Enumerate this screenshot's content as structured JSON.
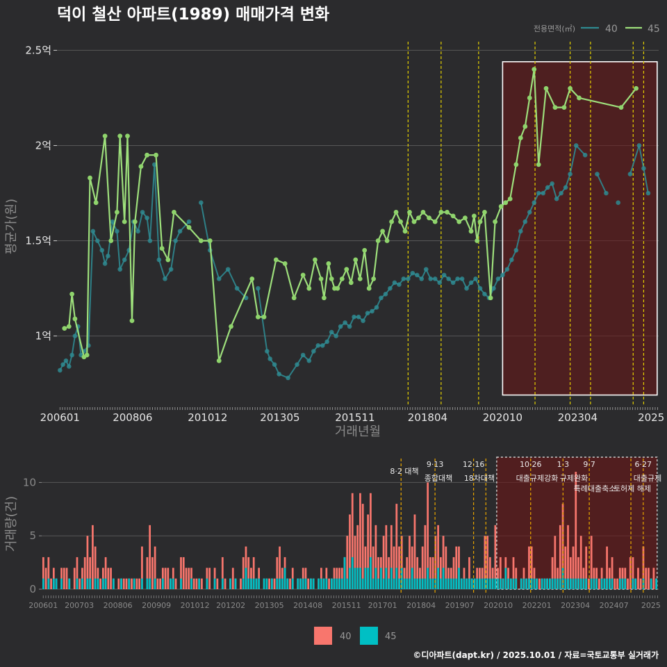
{
  "title": "덕이 철산 아파트(1989) 매매가격 변화",
  "footer": "©디아파트(dapt.kr) / 2025.10.01 / 자료=국토교통부 실거래가",
  "colors": {
    "bg": "#2b2b2d",
    "s40_line": "#2f8a91",
    "s40_point": "#2f8a91",
    "s45_line": "#9ee07c",
    "s45_point": "#8fd46c",
    "bar40": "#f8766d",
    "bar45": "#00bfc4",
    "policy_line": "#e6d200",
    "policy_line_bottom": "#e0a000",
    "shade": "#6b1515"
  },
  "chart_data": [
    {
      "type": "line",
      "title": "덕이 철산 아파트(1989) 매매가격 변화",
      "xlabel": "거래년월",
      "ylabel": "평균가(원)",
      "x_ticks": [
        "200601",
        "200806",
        "201012",
        "201305",
        "201511",
        "201804",
        "202010",
        "202304",
        "2025"
      ],
      "y_ticks": [
        {
          "value": 1.0,
          "label": "1억"
        },
        {
          "value": 1.5,
          "label": "1.5억"
        },
        {
          "value": 2.0,
          "label": "2억"
        },
        {
          "value": 2.5,
          "label": "2.5억"
        }
      ],
      "ylim": [
        0.63,
        2.6
      ],
      "xlim": [
        2005.9,
        2025.95
      ],
      "y_unit": "억",
      "legend": {
        "title": "전용면적(㎡)",
        "position": "top-right",
        "entries": [
          "40",
          "45"
        ]
      },
      "grid": true,
      "policy_dates": [
        2017.6,
        2018.7,
        2019.95,
        2021.83,
        2023.0,
        2023.68,
        2025.1,
        2025.45
      ],
      "highlight": {
        "x_range": [
          2020.75,
          2025.9
        ],
        "y_range": [
          0.69,
          2.44
        ]
      },
      "series": [
        {
          "name": "40",
          "x": [
            2006.0,
            2006.1,
            2006.2,
            2006.3,
            2006.4,
            2006.5,
            2006.6,
            2006.7,
            2006.8,
            2006.95,
            2007.1,
            2007.25,
            2007.4,
            2007.5,
            2007.6,
            2007.75,
            2007.9,
            2008.0,
            2008.15,
            2008.3,
            2008.45,
            2008.6,
            2008.75,
            2008.9,
            2009.0,
            2009.15,
            2009.3,
            2009.5,
            2009.7,
            2009.85,
            2010.0,
            2010.3,
            2010.7,
            2011.0,
            2011.3,
            2011.6,
            2011.9,
            2012.2,
            2012.6,
            2012.9,
            2013.0,
            2013.15,
            2013.3,
            2013.6,
            2013.9,
            2014.1,
            2014.3,
            2014.45,
            2014.6,
            2014.75,
            2014.9,
            2015.05,
            2015.2,
            2015.35,
            2015.5,
            2015.65,
            2015.8,
            2015.95,
            2016.1,
            2016.25,
            2016.4,
            2016.55,
            2016.7,
            2016.85,
            2017.0,
            2017.15,
            2017.3,
            2017.45,
            2017.6,
            2017.75,
            2017.9,
            2018.05,
            2018.2,
            2018.35,
            2018.5,
            2018.65,
            2018.8,
            2018.95,
            2019.1,
            2019.25,
            2019.4,
            2019.55,
            2019.7,
            2019.85,
            2020.0,
            2020.15,
            2020.3,
            2020.45,
            2020.6,
            2020.75,
            2020.9,
            2021.05,
            2021.2,
            2021.35,
            2021.5,
            2021.65,
            2021.8,
            2021.95,
            2022.1,
            2022.25,
            2022.4,
            2022.55,
            2022.7,
            2022.85,
            2023.0,
            2023.2,
            2023.5,
            2023.9,
            2024.2,
            2024.6,
            2025.0,
            2025.3,
            2025.45,
            2025.6
          ],
          "values": [
            0.82,
            0.85,
            0.87,
            0.84,
            0.9,
            1.0,
            1.05,
            0.9,
            0.92,
            0.95,
            1.55,
            1.5,
            1.45,
            1.38,
            1.42,
            1.6,
            1.55,
            1.35,
            1.4,
            1.45,
            1.6,
            1.55,
            1.65,
            1.62,
            1.5,
            1.9,
            1.4,
            1.3,
            1.35,
            1.5,
            1.55,
            1.6,
            1.7,
            1.45,
            1.3,
            1.35,
            1.25,
            1.2,
            1.25,
            0.92,
            0.88,
            0.85,
            0.8,
            0.78,
            0.85,
            0.9,
            0.87,
            0.92,
            0.95,
            0.95,
            0.97,
            1.02,
            1.0,
            1.05,
            1.07,
            1.05,
            1.1,
            1.1,
            1.08,
            1.12,
            1.13,
            1.15,
            1.2,
            1.22,
            1.25,
            1.28,
            1.27,
            1.3,
            1.3,
            1.33,
            1.32,
            1.3,
            1.35,
            1.3,
            1.3,
            1.28,
            1.32,
            1.3,
            1.28,
            1.3,
            1.3,
            1.25,
            1.28,
            1.3,
            1.25,
            1.22,
            1.2,
            1.25,
            1.3,
            1.32,
            1.35,
            1.4,
            1.45,
            1.55,
            1.6,
            1.65,
            1.7,
            1.75,
            1.75,
            1.78,
            1.8,
            1.72,
            1.75,
            1.78,
            1.85,
            2.0,
            1.95,
            1.85,
            1.75,
            1.7,
            1.85,
            2.0,
            1.88,
            1.75
          ]
        },
        {
          "name": "45",
          "x": [
            2006.15,
            2006.3,
            2006.4,
            2006.5,
            2006.8,
            2006.9,
            2007.0,
            2007.2,
            2007.5,
            2007.7,
            2007.9,
            2008.0,
            2008.15,
            2008.25,
            2008.4,
            2008.5,
            2008.7,
            2008.9,
            2009.2,
            2009.4,
            2009.6,
            2009.8,
            2010.3,
            2010.7,
            2011.0,
            2011.3,
            2011.7,
            2012.4,
            2012.6,
            2012.8,
            2013.2,
            2013.5,
            2013.8,
            2014.1,
            2014.3,
            2014.5,
            2014.7,
            2014.8,
            2014.95,
            2015.05,
            2015.15,
            2015.25,
            2015.4,
            2015.55,
            2015.7,
            2015.85,
            2016.0,
            2016.15,
            2016.3,
            2016.45,
            2016.6,
            2016.75,
            2016.9,
            2017.05,
            2017.2,
            2017.35,
            2017.5,
            2017.65,
            2017.8,
            2017.95,
            2018.1,
            2018.3,
            2018.5,
            2018.7,
            2018.9,
            2019.1,
            2019.3,
            2019.5,
            2019.7,
            2019.8,
            2019.9,
            2020.0,
            2020.15,
            2020.35,
            2020.5,
            2020.7,
            2020.85,
            2021.0,
            2021.2,
            2021.35,
            2021.5,
            2021.65,
            2021.8,
            2021.95,
            2022.2,
            2022.5,
            2022.8,
            2023.0,
            2023.3,
            2024.7,
            2025.2
          ],
          "values": [
            1.04,
            1.05,
            1.22,
            1.09,
            0.89,
            0.9,
            1.83,
            1.7,
            2.05,
            1.5,
            1.65,
            2.05,
            1.6,
            2.05,
            1.08,
            1.6,
            1.89,
            1.95,
            1.95,
            1.46,
            1.4,
            1.65,
            1.57,
            1.5,
            1.5,
            0.87,
            1.05,
            1.3,
            1.1,
            1.1,
            1.4,
            1.38,
            1.2,
            1.32,
            1.25,
            1.4,
            1.3,
            1.2,
            1.38,
            1.3,
            1.25,
            1.25,
            1.3,
            1.35,
            1.28,
            1.4,
            1.3,
            1.45,
            1.25,
            1.3,
            1.5,
            1.55,
            1.5,
            1.6,
            1.65,
            1.6,
            1.55,
            1.65,
            1.6,
            1.62,
            1.65,
            1.62,
            1.6,
            1.65,
            1.65,
            1.63,
            1.6,
            1.62,
            1.55,
            1.63,
            1.5,
            1.6,
            1.65,
            1.2,
            1.6,
            1.68,
            1.7,
            1.72,
            1.9,
            2.04,
            2.1,
            2.25,
            2.4,
            1.9,
            2.3,
            2.2,
            2.2,
            2.3,
            2.25,
            2.2,
            2.3
          ]
        }
      ]
    },
    {
      "type": "bar",
      "xlabel": "",
      "ylabel": "거래량(건)",
      "x_ticks": [
        "200601",
        "200703",
        "200806",
        "200909",
        "201012",
        "201202",
        "201305",
        "201408",
        "201511",
        "201701",
        "201804",
        "201907",
        "202010",
        "202201",
        "202304",
        "202407",
        "2025"
      ],
      "y_ticks": [
        0,
        5,
        10
      ],
      "ylim": [
        0,
        12.5
      ],
      "legend": {
        "position": "bottom",
        "entries": [
          "40",
          "45"
        ]
      },
      "highlight": {
        "x_range": [
          2020.7,
          2025.9
        ]
      },
      "policies": [
        {
          "x": 2017.6,
          "date": "",
          "label": "8·2 대책"
        },
        {
          "x": 2018.7,
          "date": "9·13",
          "label": "종합대책"
        },
        {
          "x": 2019.95,
          "date": "12·16",
          "label": "18차대책"
        },
        {
          "x": 2020.35,
          "date": "",
          "label": ""
        },
        {
          "x": 2021.8,
          "date": "10·26",
          "label": "대출규제강화"
        },
        {
          "x": 2022.85,
          "date": "1·3",
          "label": "규제완화"
        },
        {
          "x": 2023.7,
          "date": "9·7",
          "label": "특례대출축소"
        },
        {
          "x": 2025.05,
          "date": "",
          "label": "토허제 해제"
        },
        {
          "x": 2025.45,
          "date": "6·27",
          "label": "대출규제"
        }
      ],
      "series": [
        {
          "name": "40",
          "values": [
            3,
            2,
            3,
            1,
            2,
            1,
            0,
            2,
            2,
            2,
            1,
            0,
            2,
            3,
            1,
            2,
            3,
            5,
            3,
            6,
            4,
            2,
            1,
            2,
            3,
            2,
            2,
            1,
            0,
            1,
            1,
            1,
            1,
            1,
            1,
            1,
            1,
            1,
            4,
            0,
            3,
            6,
            3,
            4,
            1,
            1,
            2,
            2,
            2,
            1,
            2,
            1,
            0,
            3,
            3,
            2,
            2,
            2,
            1,
            1,
            1,
            1,
            0,
            2,
            2,
            0,
            2,
            1,
            0,
            3,
            1,
            0,
            1,
            2,
            1,
            0,
            1,
            3,
            4,
            3,
            2,
            3,
            1,
            2,
            0,
            1,
            1,
            1,
            1,
            1,
            3,
            4,
            2,
            3,
            1,
            1,
            2,
            0,
            1,
            1,
            2,
            2,
            1,
            1,
            1,
            0,
            1,
            2,
            1,
            2,
            1,
            1,
            2,
            2,
            2,
            2,
            3,
            5,
            7,
            9,
            5,
            6,
            9,
            8,
            4,
            7,
            9,
            4,
            6,
            3,
            3,
            5,
            6,
            3,
            6,
            4,
            8,
            4,
            5,
            2,
            3,
            5,
            4,
            7,
            3,
            2,
            4,
            6,
            10,
            3,
            3,
            5,
            6,
            3,
            5,
            4,
            2,
            2,
            3,
            4,
            4,
            1,
            2,
            1,
            3,
            1,
            1,
            2,
            2,
            2,
            5,
            5,
            3,
            2,
            6,
            2,
            3,
            1,
            3,
            2,
            1,
            3,
            2,
            0,
            1,
            2,
            1,
            4,
            4,
            2,
            1,
            1,
            1,
            1,
            1,
            1,
            3,
            5,
            2,
            6,
            8,
            4,
            6,
            3,
            4,
            11,
            3,
            5,
            2,
            4,
            1,
            5,
            2,
            2,
            1,
            2,
            1,
            4,
            2,
            3,
            1,
            1,
            2,
            2,
            2,
            1,
            3,
            3,
            1,
            2,
            1,
            4,
            2,
            2,
            1,
            2,
            1
          ]
        },
        {
          "name": "45",
          "values": [
            1,
            0,
            1,
            0,
            1,
            1,
            0,
            1,
            0,
            0,
            1,
            0,
            0,
            1,
            0,
            1,
            0,
            1,
            1,
            0,
            1,
            1,
            0,
            1,
            1,
            0,
            0,
            1,
            0,
            0,
            1,
            0,
            0,
            1,
            0,
            1,
            0,
            0,
            1,
            0,
            1,
            1,
            0,
            1,
            0,
            0,
            1,
            0,
            0,
            1,
            1,
            0,
            0,
            1,
            0,
            0,
            0,
            1,
            0,
            0,
            1,
            0,
            0,
            1,
            0,
            0,
            1,
            0,
            0,
            1,
            0,
            0,
            1,
            0,
            1,
            0,
            0,
            1,
            2,
            1,
            1,
            1,
            1,
            1,
            0,
            1,
            1,
            0,
            1,
            0,
            1,
            1,
            1,
            2,
            1,
            0,
            1,
            0,
            1,
            1,
            1,
            1,
            0,
            1,
            1,
            0,
            1,
            1,
            1,
            1,
            0,
            1,
            1,
            1,
            1,
            1,
            3,
            1,
            2,
            3,
            2,
            2,
            2,
            1,
            2,
            2,
            3,
            1,
            2,
            1,
            2,
            1,
            2,
            1,
            2,
            1,
            2,
            1,
            2,
            1,
            1,
            1,
            2,
            1,
            1,
            1,
            1,
            1,
            2,
            1,
            1,
            1,
            2,
            1,
            2,
            1,
            1,
            1,
            1,
            1,
            2,
            1,
            1,
            1,
            1,
            1,
            1,
            1,
            1,
            1,
            1,
            1,
            1,
            1,
            1,
            1,
            1,
            1,
            2,
            1,
            1,
            1,
            1,
            0,
            1,
            1,
            1,
            1,
            1,
            1,
            1,
            0,
            1,
            1,
            1,
            1,
            1,
            1,
            1,
            1,
            2,
            1,
            1,
            1,
            1,
            1,
            1,
            1,
            1,
            1,
            0,
            1,
            1,
            1,
            0,
            1,
            1,
            1,
            1,
            1,
            0,
            0,
            1,
            1,
            1,
            0,
            0,
            1,
            1,
            0,
            0,
            1,
            0,
            0,
            1,
            0,
            1,
            1,
            0
          ]
        }
      ]
    }
  ]
}
